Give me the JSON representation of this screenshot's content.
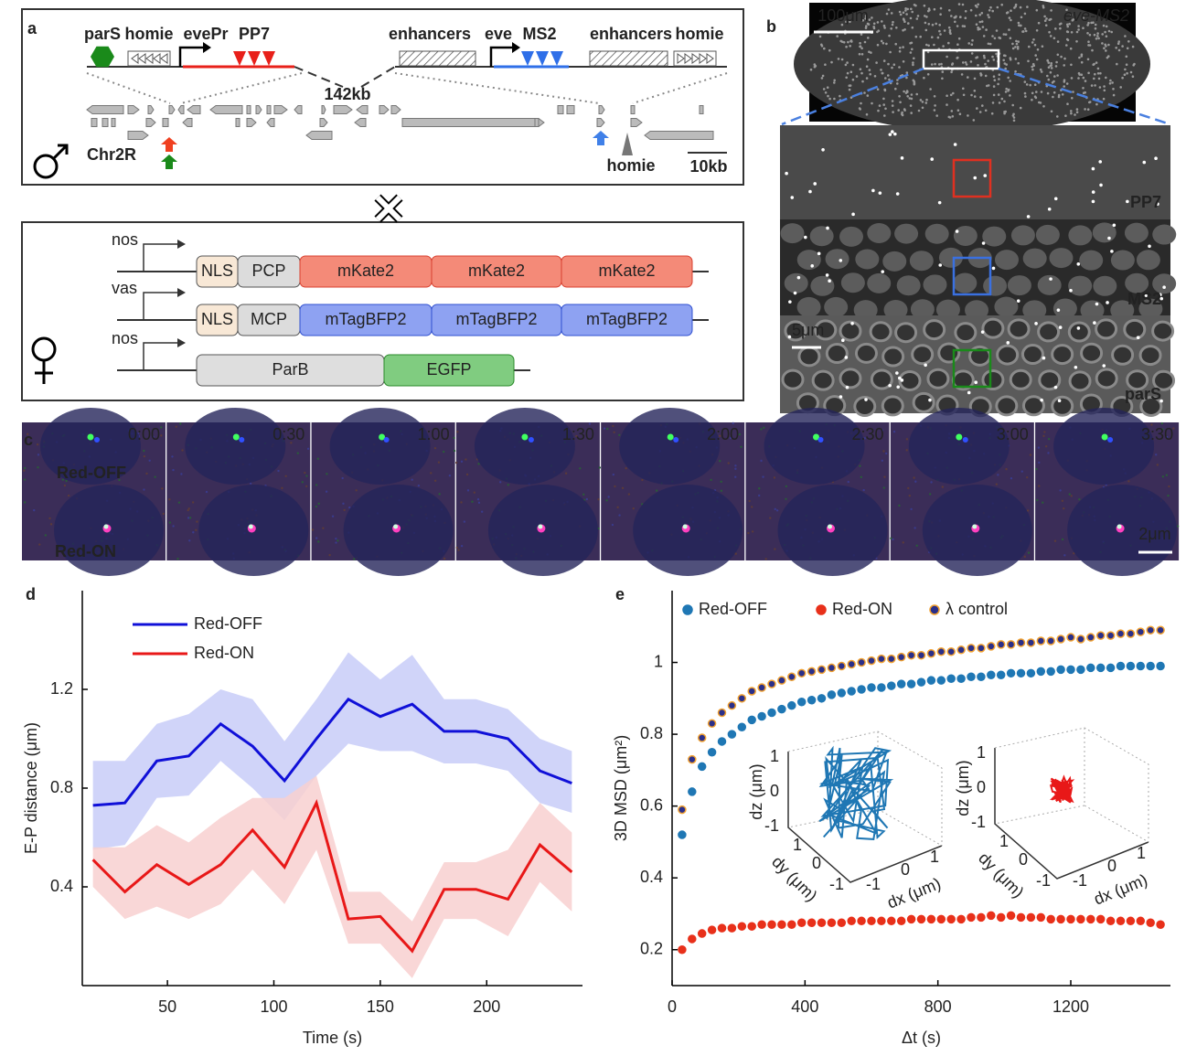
{
  "panel_a": {
    "label": "a",
    "locus_labels": [
      "parS",
      "homie",
      "evePr",
      "PP7",
      "enhancers",
      "eve",
      "MS2",
      "enhancers",
      "homie"
    ],
    "gap": "142kb",
    "chromosome": "Chr2R",
    "homie_site": "homie",
    "scale": "10kb",
    "constructs": [
      {
        "promoter": "nos",
        "parts": [
          "NLS",
          "PCP",
          "mKate2",
          "mKate2",
          "mKate2"
        ]
      },
      {
        "promoter": "vas",
        "parts": [
          "NLS",
          "MCP",
          "mTagBFP2",
          "mTagBFP2",
          "mTagBFP2"
        ]
      },
      {
        "promoter": "nos",
        "parts": [
          "ParB",
          "EGFP"
        ]
      }
    ]
  },
  "panel_b": {
    "label": "b",
    "scale_top": "100μm",
    "gene": "eve-MS2",
    "channels": [
      "PP7",
      "MS2",
      "parS"
    ],
    "scale_bottom": "5μm"
  },
  "panel_c": {
    "label": "c",
    "times": [
      "0:00",
      "0:30",
      "1:00",
      "1:30",
      "2:00",
      "2:30",
      "3:00",
      "3:30"
    ],
    "spot_labels": [
      "Red-OFF",
      "Red-ON"
    ],
    "scale": "2μm"
  },
  "chart_data": [
    {
      "type": "line",
      "panel_label": "d",
      "xlabel": "Time (s)",
      "ylabel": "E-P distance (μm)",
      "x": [
        15,
        30,
        45,
        60,
        75,
        90,
        105,
        120,
        135,
        150,
        165,
        180,
        195,
        210,
        225,
        240
      ],
      "xlim": [
        10,
        245
      ],
      "xticks": [
        50,
        100,
        150,
        200
      ],
      "ylim": [
        0,
        1.6
      ],
      "yticks": [
        0.4,
        0.8,
        1.2
      ],
      "series": [
        {
          "name": "Red-OFF",
          "color": "#1010d8",
          "band_color": "#c8cdf8",
          "values": [
            0.73,
            0.74,
            0.91,
            0.93,
            1.06,
            0.97,
            0.83,
            1.0,
            1.16,
            1.09,
            1.14,
            1.03,
            1.03,
            1.0,
            0.87,
            0.82
          ],
          "band_upper": [
            0.91,
            0.91,
            1.06,
            1.1,
            1.2,
            1.16,
            0.99,
            1.16,
            1.35,
            1.24,
            1.34,
            1.16,
            1.16,
            1.12,
            1.0,
            0.95
          ],
          "band_lower": [
            0.55,
            0.57,
            0.76,
            0.77,
            0.91,
            0.8,
            0.67,
            0.85,
            0.98,
            0.95,
            0.95,
            0.9,
            0.9,
            0.87,
            0.74,
            0.7
          ]
        },
        {
          "name": "Red-ON",
          "color": "#e81818",
          "band_color": "#f8d0d0",
          "values": [
            0.51,
            0.38,
            0.49,
            0.41,
            0.49,
            0.63,
            0.48,
            0.74,
            0.27,
            0.28,
            0.14,
            0.39,
            0.39,
            0.35,
            0.57,
            0.46
          ],
          "band_upper": [
            0.56,
            0.56,
            0.65,
            0.58,
            0.68,
            0.76,
            0.76,
            0.85,
            0.38,
            0.38,
            0.26,
            0.5,
            0.5,
            0.55,
            0.74,
            0.62
          ],
          "band_lower": [
            0.4,
            0.27,
            0.32,
            0.27,
            0.33,
            0.47,
            0.33,
            0.55,
            0.17,
            0.17,
            0.03,
            0.27,
            0.27,
            0.2,
            0.42,
            0.3
          ]
        }
      ]
    },
    {
      "type": "scatter",
      "panel_label": "e",
      "xlabel": "Δt (s)",
      "ylabel": "3D MSD (μm²)",
      "x": [
        30,
        60,
        90,
        120,
        150,
        180,
        210,
        240,
        270,
        300,
        330,
        360,
        390,
        420,
        450,
        480,
        510,
        540,
        570,
        600,
        630,
        660,
        690,
        720,
        750,
        780,
        810,
        840,
        870,
        900,
        930,
        960,
        990,
        1020,
        1050,
        1080,
        1110,
        1140,
        1170,
        1200,
        1230,
        1260,
        1290,
        1320,
        1350,
        1380,
        1410,
        1440,
        1470
      ],
      "xlim": [
        0,
        1500
      ],
      "xticks": [
        0,
        400,
        800,
        1200
      ],
      "ylim": [
        0.1,
        1.2
      ],
      "yticks": [
        0.2,
        0.4,
        0.6,
        0.8,
        1
      ],
      "series": [
        {
          "name": "Red-OFF",
          "color": "#1f77b4",
          "edgecolor": "#1f77b4",
          "values": [
            0.52,
            0.64,
            0.71,
            0.75,
            0.78,
            0.8,
            0.82,
            0.84,
            0.85,
            0.86,
            0.87,
            0.88,
            0.89,
            0.895,
            0.9,
            0.91,
            0.915,
            0.92,
            0.925,
            0.93,
            0.93,
            0.935,
            0.94,
            0.94,
            0.945,
            0.95,
            0.95,
            0.955,
            0.955,
            0.96,
            0.96,
            0.965,
            0.965,
            0.97,
            0.97,
            0.97,
            0.975,
            0.975,
            0.98,
            0.98,
            0.98,
            0.985,
            0.985,
            0.985,
            0.99,
            0.99,
            0.99,
            0.99,
            0.99
          ]
        },
        {
          "name": "Red-ON",
          "color": "#e8301a",
          "edgecolor": "#e8301a",
          "values": [
            0.2,
            0.23,
            0.245,
            0.255,
            0.26,
            0.26,
            0.265,
            0.265,
            0.27,
            0.27,
            0.27,
            0.27,
            0.275,
            0.275,
            0.275,
            0.275,
            0.275,
            0.28,
            0.28,
            0.28,
            0.28,
            0.28,
            0.28,
            0.285,
            0.285,
            0.285,
            0.285,
            0.285,
            0.285,
            0.29,
            0.29,
            0.295,
            0.29,
            0.295,
            0.29,
            0.29,
            0.29,
            0.285,
            0.285,
            0.285,
            0.285,
            0.285,
            0.285,
            0.28,
            0.28,
            0.28,
            0.28,
            0.275,
            0.27
          ]
        },
        {
          "name": "λ control",
          "color": "#2a2f8a",
          "edgecolor": "#f0a030",
          "values": [
            0.59,
            0.73,
            0.79,
            0.83,
            0.86,
            0.88,
            0.9,
            0.92,
            0.93,
            0.94,
            0.95,
            0.96,
            0.97,
            0.975,
            0.98,
            0.985,
            0.99,
            0.995,
            1.0,
            1.005,
            1.01,
            1.01,
            1.015,
            1.02,
            1.02,
            1.025,
            1.03,
            1.03,
            1.035,
            1.04,
            1.04,
            1.045,
            1.05,
            1.05,
            1.055,
            1.055,
            1.06,
            1.06,
            1.065,
            1.07,
            1.065,
            1.07,
            1.075,
            1.075,
            1.08,
            1.08,
            1.085,
            1.09,
            1.09
          ]
        }
      ],
      "insets": [
        {
          "z_label": "dz (μm)",
          "y_label": "dy (μm)",
          "x_label": "dx (μm)",
          "z_ticks": [
            1,
            0,
            -1
          ],
          "y_ticks": [
            1,
            0,
            -1
          ],
          "x_ticks": [
            -1,
            0,
            1
          ]
        },
        {
          "z_label": "dz (μm)",
          "y_label": "dy (μm)",
          "x_label": "dx (μm)",
          "z_ticks": [
            1,
            0,
            -1
          ],
          "y_ticks": [
            1,
            0,
            -1
          ],
          "x_ticks": [
            -1,
            0,
            1
          ]
        }
      ]
    }
  ]
}
